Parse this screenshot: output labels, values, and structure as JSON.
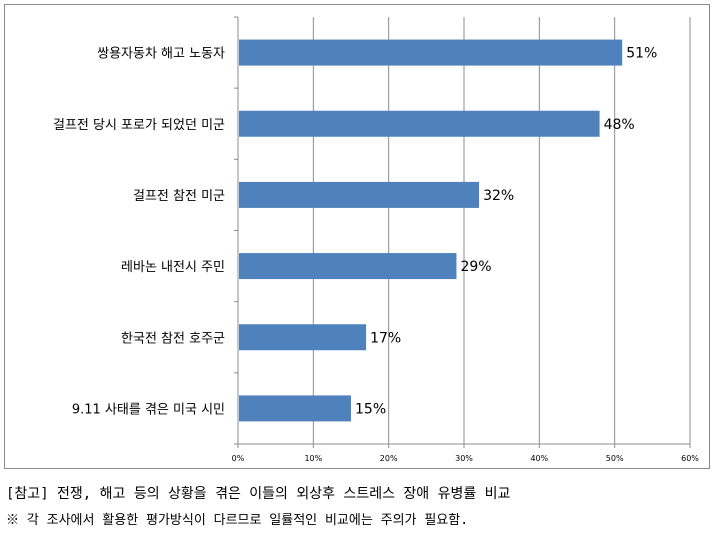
{
  "chart_data": {
    "type": "bar",
    "orientation": "horizontal",
    "categories": [
      "쌍용자동차 해고 노동자",
      "걸프전 당시 포로가 되었던 미군",
      "걸프전 참전 미군",
      "레바논 내전시 주민",
      "한국전 참전 호주군",
      "9.11 사태를 겪은 미국 시민"
    ],
    "values": [
      51,
      48,
      32,
      29,
      17,
      15
    ],
    "value_labels": [
      "51%",
      "48%",
      "32%",
      "29%",
      "17%",
      "15%"
    ],
    "x_ticks": [
      "0%",
      "10%",
      "20%",
      "30%",
      "40%",
      "50%",
      "60%"
    ],
    "xlim": [
      0,
      60
    ],
    "grid": "vertical",
    "bar_color": "#4f81bd",
    "grid_color": "#8c8c8c",
    "title": "",
    "xlabel": "",
    "ylabel": ""
  },
  "notes": {
    "line1": "[참고] 전쟁, 해고 등의 상황을 겪은 이들의 외상후 스트레스 장애 유병률 비교",
    "line2": "※ 각 조사에서 활용한 평가방식이 다르므로 일률적인 비교에는 주의가 필요함."
  }
}
